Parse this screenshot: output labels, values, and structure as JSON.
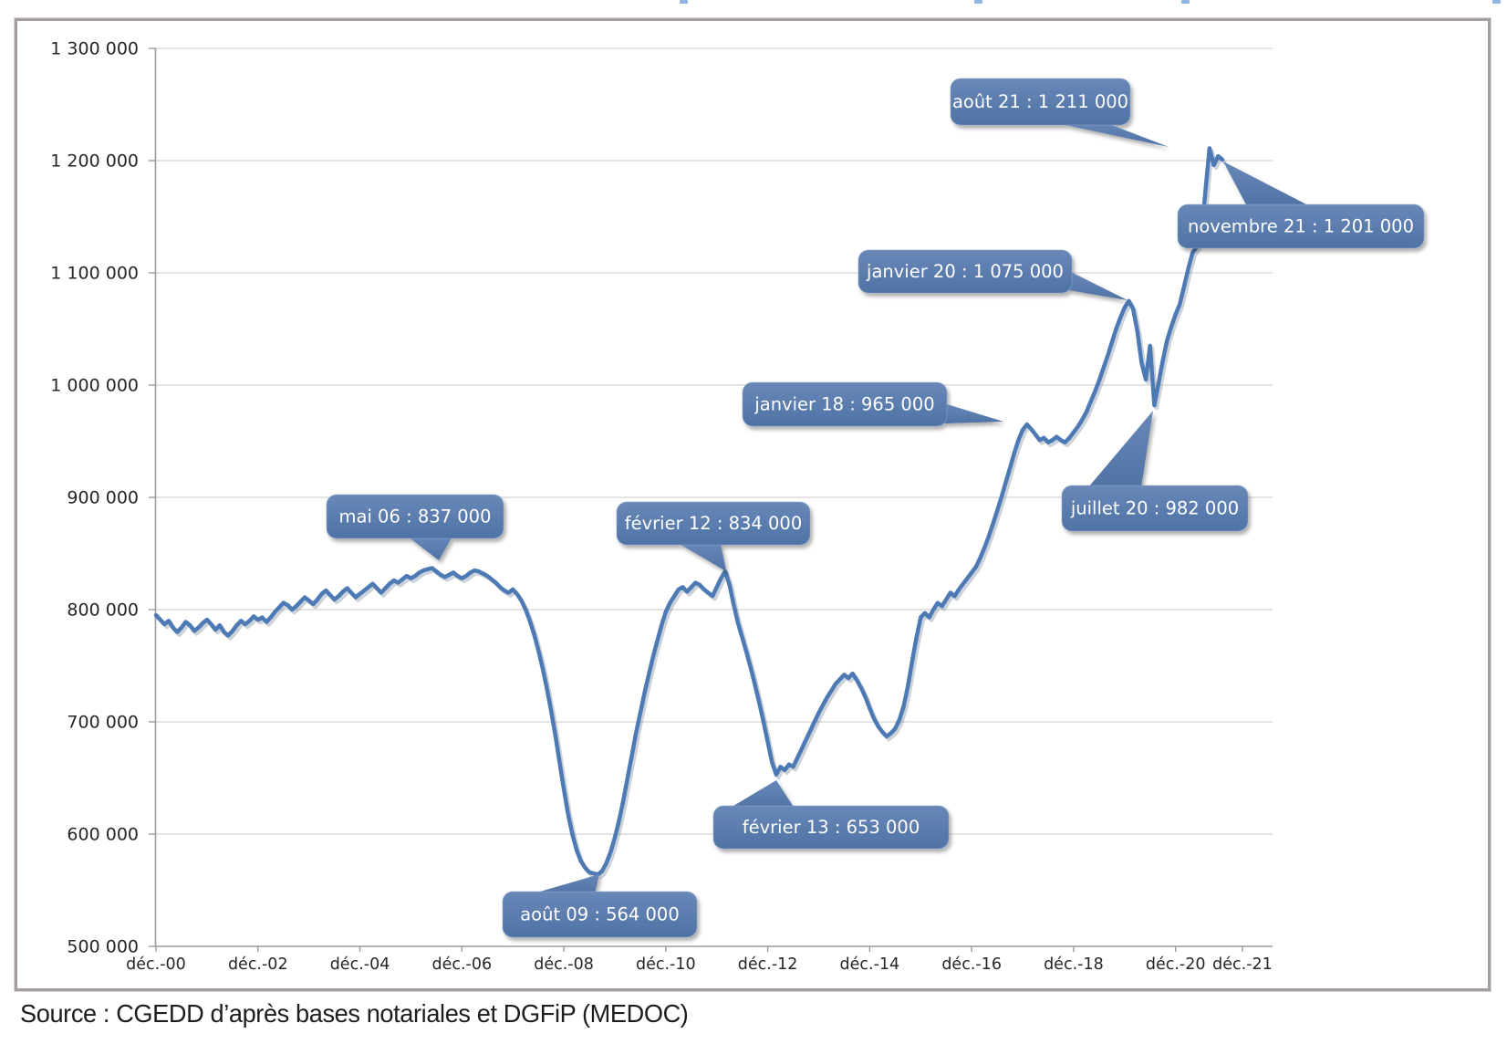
{
  "colors": {
    "line": "#4d7ab5",
    "line_shadow": "rgba(110,125,145,0.35)",
    "callout_fill_top": "#6888b7",
    "callout_fill_bottom": "#4f72a5",
    "callout_stroke": "#8aa6cc",
    "callout_text": "#ffffff",
    "grid": "#c9c9c9",
    "axis": "#9b9b9b",
    "tick_label": "#262626",
    "source_text": "#1d1d1d",
    "frame_border": "#a49e9e",
    "cropped_title_blue": "#8fb4e2"
  },
  "source_line": "Source : CGEDD d’après bases notariales et DGFiP (MEDOC)",
  "chart_data": {
    "type": "line",
    "title": "",
    "grid": true,
    "legend": "none",
    "ylim": [
      500000,
      1300000
    ],
    "y_ticks": [
      1300000,
      1200000,
      1100000,
      1000000,
      900000,
      800000,
      700000,
      600000,
      500000
    ],
    "y_tick_labels": [
      "1 300 000",
      "1 200 000",
      "1 100 000",
      "1 000 000",
      "900 000",
      "800 000",
      "700 000",
      "600 000",
      "500 000"
    ],
    "x_tick_labels": [
      "déc.-00",
      "déc.-02",
      "déc.-04",
      "déc.-06",
      "déc.-08",
      "déc.-10",
      "déc.-12",
      "déc.-14",
      "déc.-16",
      "déc.-18",
      "déc.-20",
      "déc.-21"
    ],
    "x_start_month": "décembre 2000",
    "x_end_month": "novembre 2021",
    "series": [
      {
        "name": "",
        "unit_note": "values in thousands, monthly from déc. 2000 to nov. 2021",
        "values_thousands": [
          795,
          791,
          787,
          790,
          784,
          780,
          784,
          789,
          786,
          781,
          784,
          788,
          791,
          787,
          782,
          786,
          780,
          777,
          781,
          786,
          790,
          787,
          790,
          794,
          791,
          793,
          789,
          793,
          798,
          802,
          806,
          804,
          800,
          803,
          807,
          811,
          808,
          805,
          809,
          814,
          817,
          813,
          809,
          812,
          816,
          819,
          815,
          811,
          814,
          817,
          820,
          823,
          819,
          815,
          819,
          823,
          826,
          824,
          827,
          830,
          828,
          830,
          833,
          835,
          836,
          837,
          834,
          831,
          829,
          831,
          833,
          830,
          828,
          830,
          833,
          835,
          834,
          832,
          830,
          827,
          824,
          820,
          817,
          815,
          818,
          814,
          808,
          800,
          790,
          778,
          764,
          748,
          730,
          710,
          688,
          664,
          640,
          618,
          600,
          586,
          576,
          570,
          566,
          565,
          564,
          567,
          574,
          584,
          597,
          612,
          630,
          650,
          670,
          690,
          708,
          726,
          742,
          758,
          772,
          786,
          798,
          806,
          812,
          818,
          820,
          816,
          820,
          824,
          822,
          818,
          815,
          812,
          820,
          828,
          834,
          822,
          804,
          788,
          775,
          762,
          748,
          733,
          717,
          700,
          682,
          664,
          653,
          660,
          657,
          662,
          660,
          668,
          676,
          684,
          692,
          700,
          708,
          715,
          722,
          728,
          734,
          738,
          742,
          739,
          743,
          737,
          730,
          722,
          712,
          703,
          696,
          691,
          687,
          690,
          694,
          702,
          714,
          732,
          754,
          775,
          793,
          797,
          793,
          800,
          806,
          803,
          809,
          815,
          812,
          818,
          823,
          828,
          833,
          838,
          846,
          855,
          865,
          876,
          888,
          900,
          913,
          926,
          939,
          951,
          960,
          965,
          961,
          956,
          951,
          953,
          949,
          951,
          954,
          951,
          949,
          953,
          958,
          963,
          969,
          976,
          985,
          994,
          1004,
          1015,
          1026,
          1038,
          1050,
          1060,
          1069,
          1075,
          1068,
          1048,
          1020,
          1005,
          1035,
          982,
          1002,
          1022,
          1040,
          1052,
          1063,
          1072,
          1088,
          1104,
          1118,
          1123,
          1130,
          1172,
          1211,
          1196,
          1204,
          1201
        ]
      }
    ],
    "annotations": [
      {
        "label": "mai 06 : 837 000",
        "date": "mai 2006",
        "value": 837000
      },
      {
        "label": "août 09 : 564 000",
        "date": "août 2009",
        "value": 564000
      },
      {
        "label": "février 12 : 834 000",
        "date": "février 2012",
        "value": 834000
      },
      {
        "label": "février 13 : 653 000",
        "date": "février 2013",
        "value": 653000
      },
      {
        "label": "janvier 18 : 965 000",
        "date": "janvier 2018",
        "value": 965000
      },
      {
        "label": "janvier 20 : 1 075 000",
        "date": "janvier 2020",
        "value": 1075000
      },
      {
        "label": "juillet 20 : 982 000",
        "date": "juillet 2020",
        "value": 982000
      },
      {
        "label": "août 21 : 1 211 000",
        "date": "août 2021",
        "value": 1211000
      },
      {
        "label": "novembre 21 : 1 201 000",
        "date": "novembre 2021",
        "value": 1201000
      }
    ]
  }
}
